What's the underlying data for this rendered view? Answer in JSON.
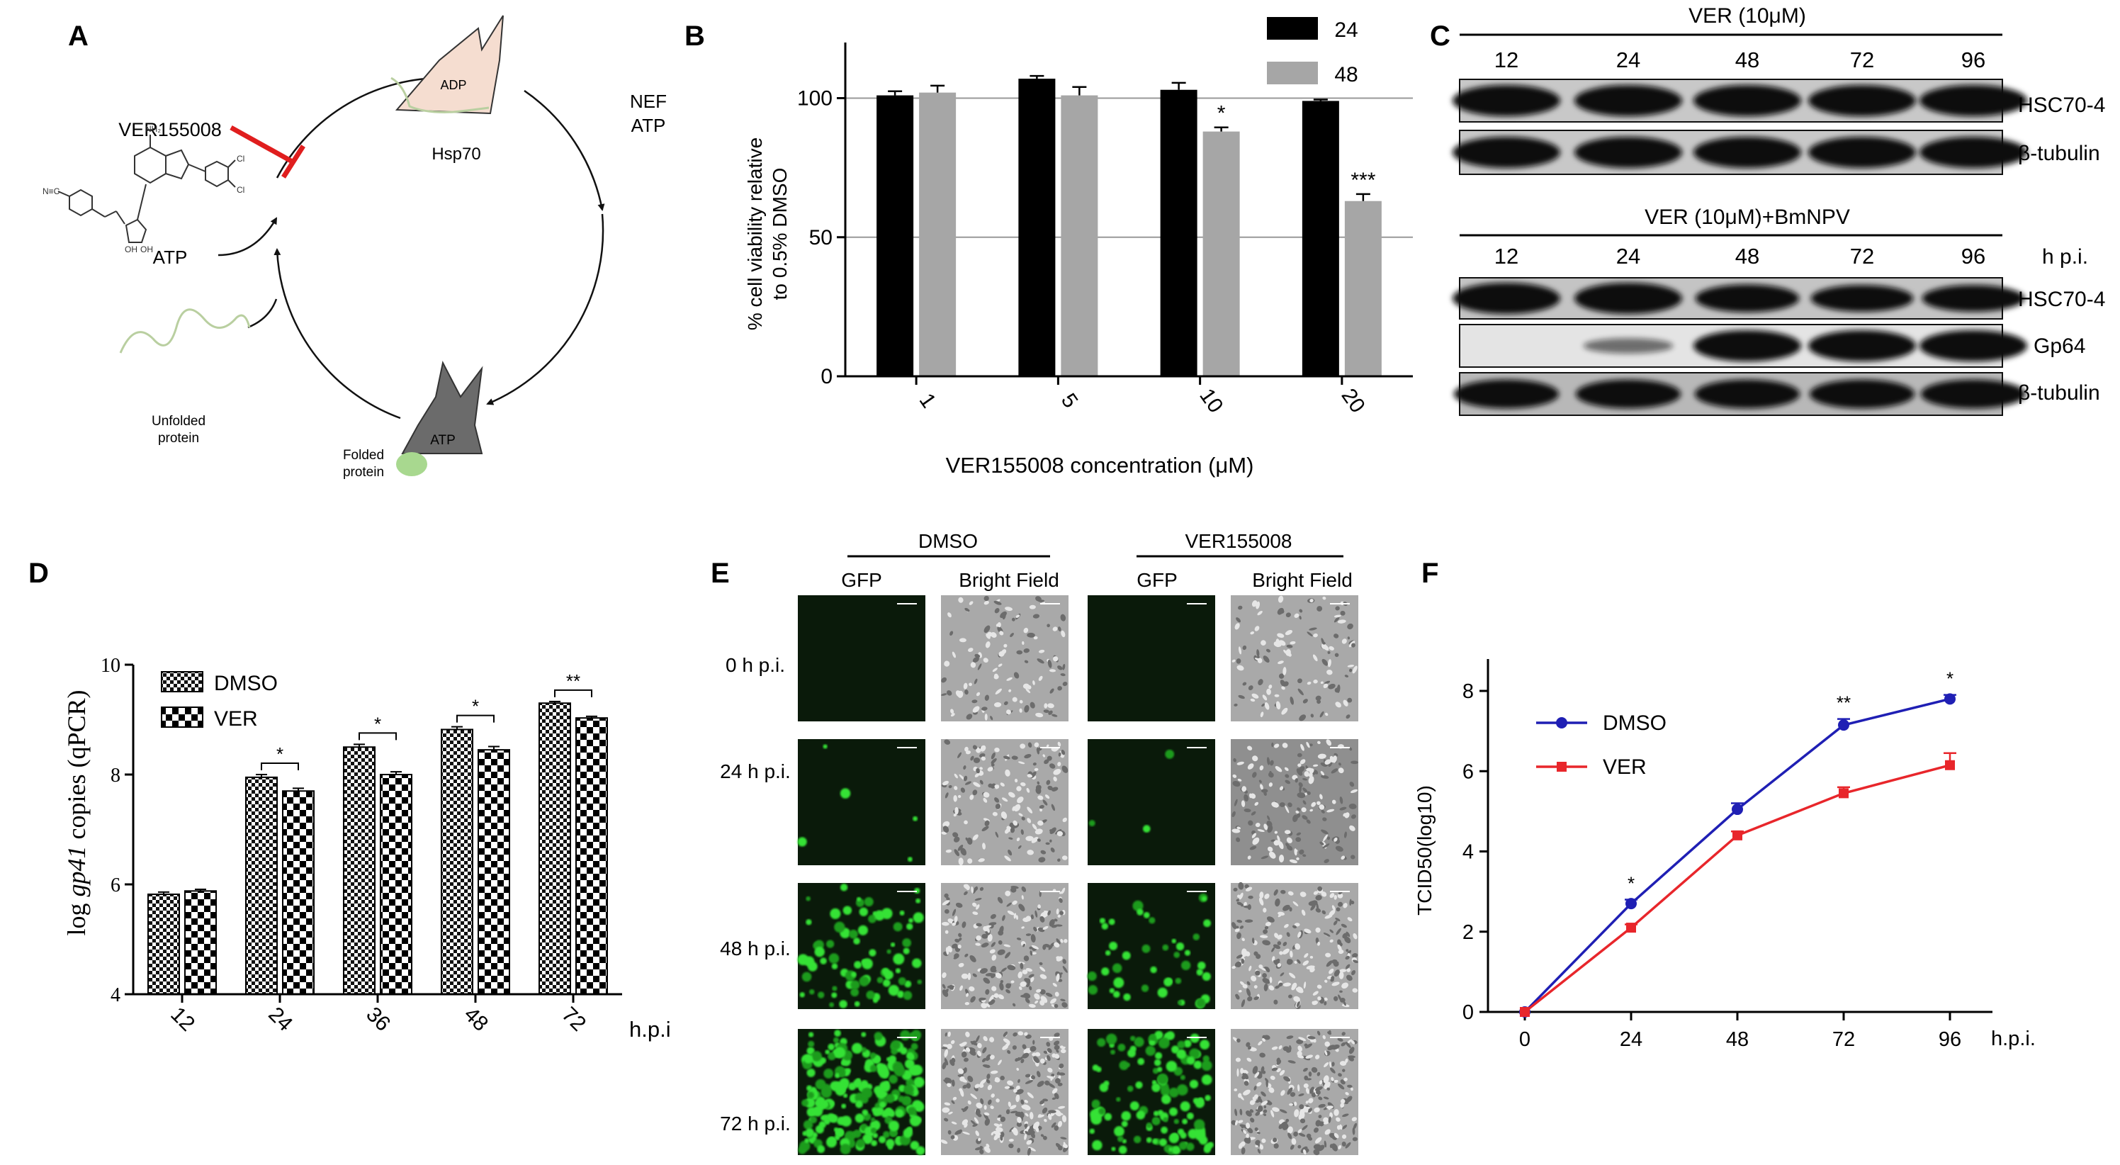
{
  "panels": {
    "A": {
      "letter": "A",
      "drug": "VER155008",
      "hsp": "Hsp70",
      "adp": "ADP",
      "atp_state": "ATP",
      "nef": "NEF",
      "nef_atp": "ATP",
      "atp_in": "ATP",
      "unfolded_1": "Unfolded",
      "unfolded_2": "protein",
      "folded_1": "Folded",
      "folded_2": "protein"
    },
    "B": {
      "letter": "B"
    },
    "C": {
      "letter": "C",
      "top_header": "VER (10μM)",
      "bottom_header": "VER (10μM)+BmNPV",
      "times": [
        "12",
        "24",
        "48",
        "72",
        "96"
      ],
      "hpi": "h p.i.",
      "top_rows": [
        "HSC70-4",
        "β-tubulin"
      ],
      "bottom_rows": [
        "HSC70-4",
        "Gp64",
        "β-tubulin"
      ],
      "blot_levels": {
        "top_hsc": [
          1,
          1,
          1,
          1,
          1
        ],
        "top_tub": [
          1,
          1,
          1,
          1,
          1
        ],
        "bottom_hsc": [
          1,
          1,
          0.85,
          0.8,
          0.8
        ],
        "bottom_gp64": [
          0,
          0.3,
          1,
          1,
          1
        ],
        "bottom_tub": [
          0.9,
          0.9,
          0.9,
          0.9,
          0.9
        ]
      }
    },
    "D": {
      "letter": "D"
    },
    "E": {
      "letter": "E",
      "group_dmso": "DMSO",
      "group_ver": "VER155008",
      "col_gfp": "GFP",
      "col_bf": "Bright Field",
      "rows": [
        "0 h p.i.",
        "24 h p.i.",
        "48 h p.i.",
        "72 h p.i."
      ],
      "gfp_density": [
        0,
        0.02,
        0.3,
        0.85
      ]
    },
    "F": {
      "letter": "F"
    }
  },
  "chart_data": [
    {
      "panel": "B",
      "type": "bar",
      "categories": [
        "1",
        "5",
        "10",
        "20"
      ],
      "series": [
        {
          "name": "24",
          "color": "#000000",
          "values": [
            101,
            107,
            103,
            99
          ],
          "errors": [
            1.5,
            1,
            2.5,
            0.5
          ]
        },
        {
          "name": "48",
          "color": "#a6a6a6",
          "values": [
            102,
            101,
            88,
            63
          ],
          "errors": [
            2.5,
            3,
            1.5,
            2.5
          ]
        }
      ],
      "significance": [
        {
          "category": "10",
          "series": "48",
          "label": "*"
        },
        {
          "category": "20",
          "series": "48",
          "label": "***"
        }
      ],
      "ylabel_line1": "% cell viability relative",
      "ylabel_line2": "to 0.5% DMSO",
      "xlabel": "VER155008 concentration (μM)",
      "ylim": [
        0,
        120
      ],
      "yticks": [
        0,
        50,
        100
      ],
      "gridlines": [
        50,
        100
      ],
      "legend": "top-right"
    },
    {
      "panel": "D",
      "type": "bar",
      "categories": [
        "12",
        "24",
        "36",
        "48",
        "72"
      ],
      "series": [
        {
          "name": "DMSO",
          "pattern": "fine-checker",
          "values": [
            5.82,
            7.95,
            8.5,
            8.82,
            9.3
          ],
          "errors": [
            0.04,
            0.05,
            0.05,
            0.05,
            0.03
          ]
        },
        {
          "name": "VER",
          "pattern": "coarse-checker",
          "values": [
            5.88,
            7.7,
            8.0,
            8.45,
            9.03
          ],
          "errors": [
            0.03,
            0.05,
            0.05,
            0.06,
            0.03
          ]
        }
      ],
      "significance": [
        {
          "category": "24",
          "label": "*"
        },
        {
          "category": "36",
          "label": "*"
        },
        {
          "category": "48",
          "label": "*"
        },
        {
          "category": "72",
          "label": "**"
        }
      ],
      "ylabel_pre": "log ",
      "ylabel_gene": "gp41",
      "ylabel_post": " copies (qPCR)",
      "x_unit": "h.p.i",
      "ylim": [
        4,
        10
      ],
      "yticks": [
        4,
        6,
        8,
        10
      ],
      "legend": "top-left"
    },
    {
      "panel": "F",
      "type": "line",
      "x": [
        0,
        24,
        48,
        72,
        96
      ],
      "series": [
        {
          "name": "DMSO",
          "color": "#1f1fb4",
          "marker": "circle",
          "values": [
            0,
            2.7,
            5.05,
            7.15,
            7.8
          ],
          "errors": [
            0,
            0.1,
            0.15,
            0.15,
            0.1
          ]
        },
        {
          "name": "VER",
          "color": "#e8262b",
          "marker": "square",
          "values": [
            0,
            2.1,
            4.4,
            5.45,
            6.15
          ],
          "errors": [
            0,
            0.08,
            0.1,
            0.15,
            0.3
          ]
        }
      ],
      "significance": [
        {
          "x": 24,
          "label": "*"
        },
        {
          "x": 72,
          "label": "**"
        },
        {
          "x": 96,
          "label": "*"
        }
      ],
      "ylabel": "TCID50(log10)",
      "x_unit": "h.p.i.",
      "xlim": [
        0,
        96
      ],
      "ylim": [
        0,
        8
      ],
      "yticks": [
        0,
        2,
        4,
        6,
        8
      ],
      "legend": "top-left"
    }
  ]
}
